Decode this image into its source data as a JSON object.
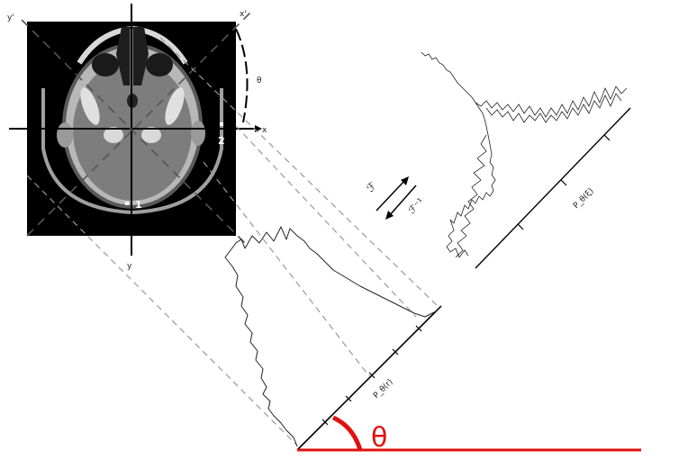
{
  "diagram": {
    "axes": {
      "x_label": "x",
      "y_label": "y",
      "x_prime_label": "x'",
      "y_prime_label": "y'"
    },
    "angle_label_small": "θ",
    "markers": {
      "marker_1": "1",
      "marker_2": "2"
    },
    "transform": {
      "forward_label": "ℱ",
      "inverse_label": "ℱ⁻¹"
    },
    "projection_label": "P_θ(r)",
    "spectrum_label": "P_θ(ξ)",
    "angle_label_large": "θ",
    "colors": {
      "accent": "#e01010",
      "ct_background": "#000000",
      "lines": "#111111",
      "dashed_guides": "#999999"
    }
  }
}
